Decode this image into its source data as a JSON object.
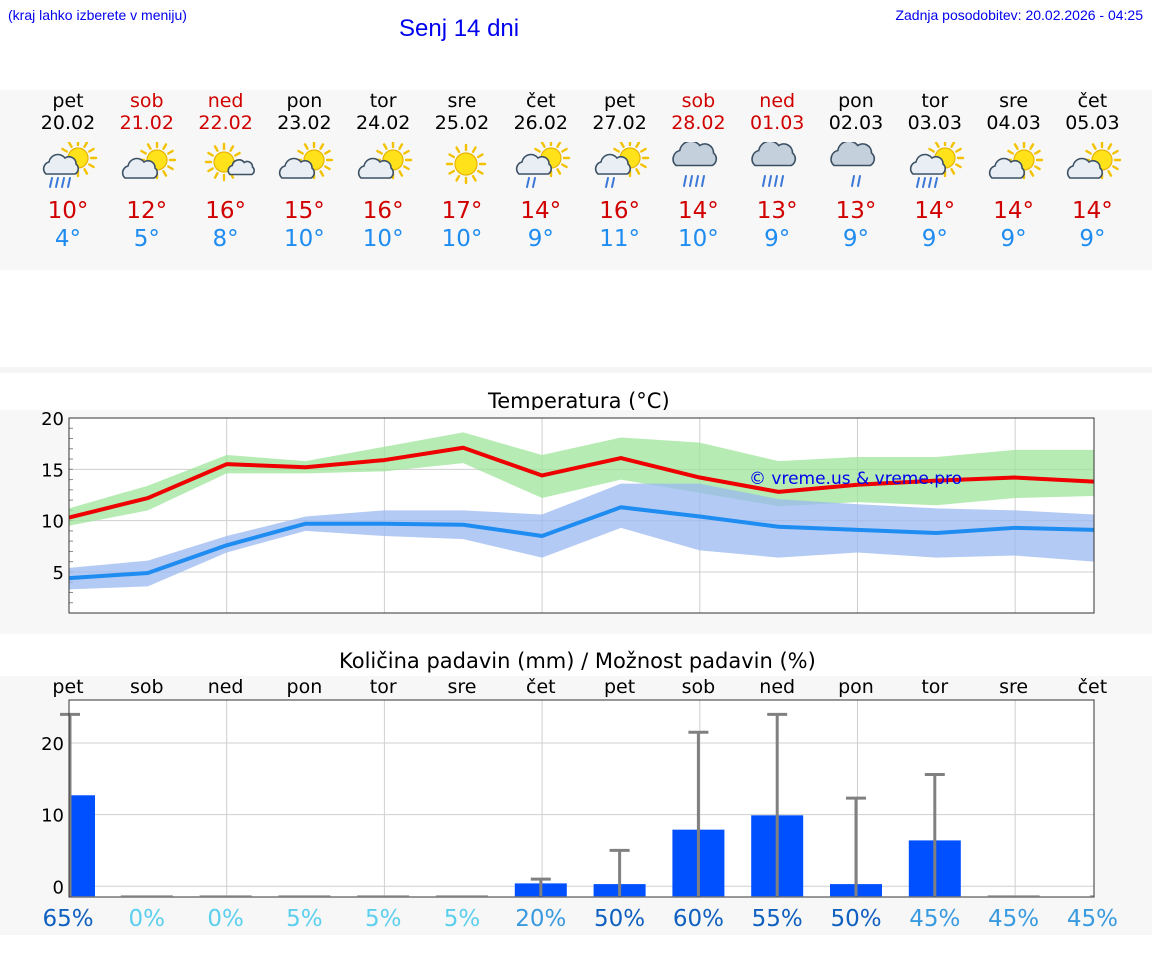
{
  "header": {
    "hint": "(kraj lahko izberete v meniju)",
    "title": "Senj 14 dni",
    "updated": "Zadnja posodobitev: 20.02.2026 - 04:25"
  },
  "forecast": [
    {
      "day": "pet",
      "date": "20.02",
      "weekend": false,
      "icon": "sun-cloud-rain-icon",
      "tmax": "10°",
      "tmin": "4°"
    },
    {
      "day": "sob",
      "date": "21.02",
      "weekend": true,
      "icon": "sun-cloud-icon",
      "tmax": "12°",
      "tmin": "5°"
    },
    {
      "day": "ned",
      "date": "22.02",
      "weekend": true,
      "icon": "sun-small-cloud-icon",
      "tmax": "16°",
      "tmin": "8°"
    },
    {
      "day": "pon",
      "date": "23.02",
      "weekend": false,
      "icon": "sun-cloud-icon",
      "tmax": "15°",
      "tmin": "10°"
    },
    {
      "day": "tor",
      "date": "24.02",
      "weekend": false,
      "icon": "sun-cloud-icon",
      "tmax": "16°",
      "tmin": "10°"
    },
    {
      "day": "sre",
      "date": "25.02",
      "weekend": false,
      "icon": "sun-icon",
      "tmax": "17°",
      "tmin": "10°"
    },
    {
      "day": "čet",
      "date": "26.02",
      "weekend": false,
      "icon": "sun-cloud-light-rain-icon",
      "tmax": "14°",
      "tmin": "9°"
    },
    {
      "day": "pet",
      "date": "27.02",
      "weekend": false,
      "icon": "sun-cloud-light-rain-icon",
      "tmax": "16°",
      "tmin": "11°"
    },
    {
      "day": "sob",
      "date": "28.02",
      "weekend": true,
      "icon": "cloud-rain-icon",
      "tmax": "14°",
      "tmin": "10°"
    },
    {
      "day": "ned",
      "date": "01.03",
      "weekend": true,
      "icon": "cloud-rain-icon",
      "tmax": "13°",
      "tmin": "9°"
    },
    {
      "day": "pon",
      "date": "02.03",
      "weekend": false,
      "icon": "cloud-light-rain-icon",
      "tmax": "13°",
      "tmin": "9°"
    },
    {
      "day": "tor",
      "date": "03.03",
      "weekend": false,
      "icon": "sun-cloud-rain-icon",
      "tmax": "14°",
      "tmin": "9°"
    },
    {
      "day": "sre",
      "date": "04.03",
      "weekend": false,
      "icon": "sun-cloud-icon",
      "tmax": "14°",
      "tmin": "9°"
    },
    {
      "day": "čet",
      "date": "05.03",
      "weekend": false,
      "icon": "sun-cloud-icon",
      "tmax": "14°",
      "tmin": "9°"
    }
  ],
  "colors": {
    "max_line": "#ee0000",
    "max_band": "#9ee49a",
    "min_line": "#1e8cf0",
    "min_band": "#9ab8f0",
    "bar": "#0050ff",
    "error": "#808080",
    "weekend": "#d10000",
    "watermark": "#0000ee"
  },
  "chart_data": [
    {
      "type": "line",
      "title": "Temperatura (°C)",
      "watermark": "© vreme.us & vreme.pro",
      "x": [
        0,
        1,
        2,
        3,
        4,
        5,
        6,
        7,
        8,
        9,
        10,
        11,
        12,
        13
      ],
      "yticks": [
        "5",
        "10",
        "15",
        "20"
      ],
      "ylim": [
        1,
        20
      ],
      "series": [
        {
          "name": "max",
          "values": [
            10.3,
            12.2,
            15.5,
            15.2,
            15.9,
            17.1,
            14.4,
            16.1,
            14.2,
            12.8,
            13.5,
            13.9,
            14.2,
            13.8
          ],
          "band_low": [
            9.5,
            11.0,
            14.6,
            14.6,
            14.8,
            15.6,
            12.2,
            14.0,
            12.7,
            11.4,
            11.8,
            11.5,
            12.2,
            12.4
          ],
          "band_high": [
            11.2,
            13.4,
            16.4,
            15.8,
            17.2,
            18.6,
            16.4,
            18.1,
            17.6,
            15.8,
            16.2,
            16.2,
            16.9,
            16.9
          ]
        },
        {
          "name": "min",
          "values": [
            4.4,
            4.9,
            7.6,
            9.7,
            9.7,
            9.6,
            8.5,
            11.3,
            10.4,
            9.4,
            9.1,
            8.8,
            9.3,
            9.1
          ],
          "band_low": [
            3.3,
            3.6,
            6.9,
            9.0,
            8.5,
            8.2,
            6.4,
            9.3,
            7.1,
            6.4,
            6.9,
            6.4,
            6.6,
            6.0
          ],
          "band_high": [
            5.4,
            6.1,
            8.5,
            10.4,
            11.0,
            11.0,
            10.6,
            13.6,
            13.6,
            12.1,
            11.6,
            11.2,
            11.0,
            10.6
          ]
        }
      ]
    },
    {
      "type": "bar",
      "title": "Količina padavin (mm) / Možnost padavin (%)",
      "categories": [
        "pet",
        "sob",
        "ned",
        "pon",
        "tor",
        "sre",
        "čet",
        "pet",
        "sob",
        "ned",
        "pon",
        "tor",
        "sre",
        "čet"
      ],
      "values": [
        12.7,
        0,
        0,
        0,
        0,
        0,
        0.4,
        0.3,
        7.9,
        9.9,
        0.3,
        6.4,
        0,
        0
      ],
      "error_high": [
        24,
        0,
        0,
        0,
        0,
        0,
        1,
        5,
        21.5,
        24,
        12.3,
        15.6,
        0,
        0
      ],
      "probabilities": [
        "65%",
        "0%",
        "0%",
        "5%",
        "5%",
        "5%",
        "20%",
        "50%",
        "60%",
        "55%",
        "50%",
        "45%",
        "45%",
        "45%"
      ],
      "yticks": [
        "0",
        "10",
        "20"
      ],
      "ylim": [
        -1.5,
        26
      ]
    }
  ]
}
